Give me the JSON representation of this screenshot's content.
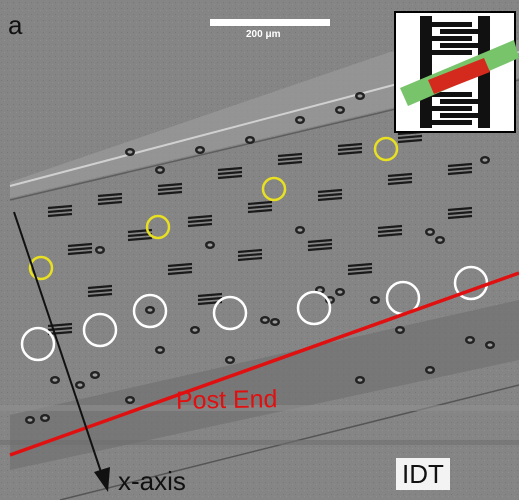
{
  "figure": {
    "panel_label": "a",
    "scale_bar_text": "200 μm",
    "post_end_label": "Post End",
    "axis_label": "x-axis",
    "idt_label": "IDT"
  },
  "colors": {
    "background": "#7f7f7f",
    "channel_fill": "#8a8a8a",
    "post_end_line": "#e01010",
    "yellow_marker": "#e8e020",
    "white_marker": "#ffffff",
    "inset_red": "#d42a1e",
    "inset_green": "#77c46a"
  },
  "icons": {
    "inset": "idt-electrode-diagram-icon"
  }
}
